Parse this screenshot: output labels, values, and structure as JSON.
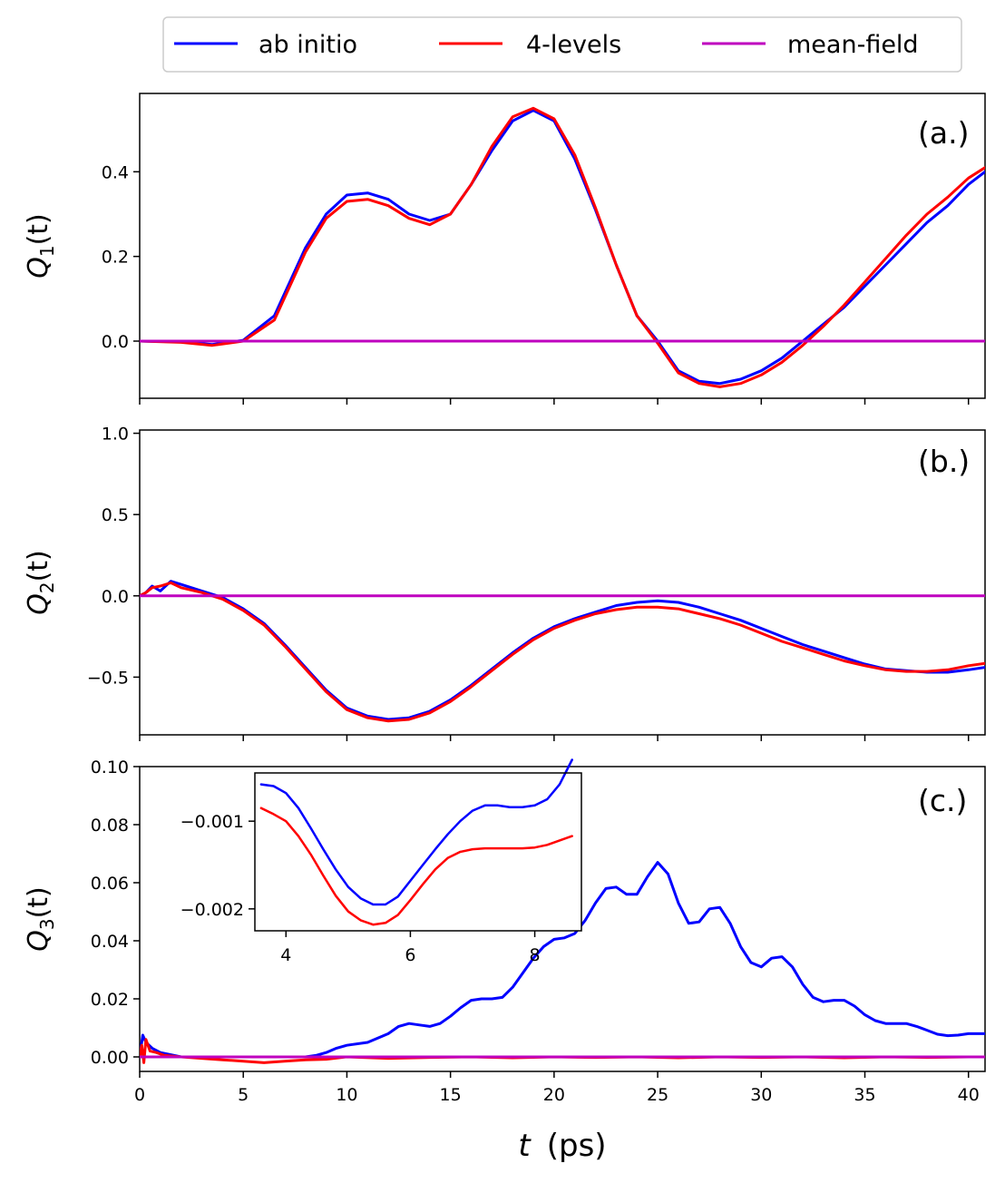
{
  "legend": {
    "entries": [
      {
        "label": "ab initio",
        "color": "#0000ff"
      },
      {
        "label": "4-levels",
        "color": "#ff0000"
      },
      {
        "label": "mean-field",
        "color": "#bf00bf"
      }
    ]
  },
  "xaxis": {
    "label_t": "t",
    "label_units": "(ps)",
    "range": [
      0,
      40.8
    ],
    "ticks": [
      0,
      5,
      10,
      15,
      20,
      25,
      30,
      35,
      40
    ],
    "tick_labels": [
      "0",
      "5",
      "10",
      "15",
      "20",
      "25",
      "30",
      "35",
      "40"
    ]
  },
  "chart_data": [
    {
      "type": "line",
      "panel_label": "(a.)",
      "ylabel_main": "Q",
      "ylabel_sub": "1",
      "ylabel_arg": "(t)",
      "ylim": [
        -0.135,
        0.585
      ],
      "yticks": [
        0.0,
        0.2,
        0.4
      ],
      "ytick_labels": [
        "0.0",
        "0.2",
        "0.4"
      ],
      "series": [
        {
          "name": "ab initio",
          "color": "#0000ff",
          "x": [
            0,
            2,
            3.5,
            5,
            6.5,
            8,
            9,
            10,
            11,
            12,
            13,
            14,
            15,
            16,
            17,
            18,
            19,
            20,
            21,
            22,
            23,
            24,
            25,
            26,
            27,
            28,
            29,
            30,
            31,
            32,
            33,
            34,
            35,
            36,
            37,
            38,
            39,
            40,
            40.8
          ],
          "y": [
            0,
            -0.002,
            -0.008,
            0.002,
            0.06,
            0.22,
            0.3,
            0.345,
            0.35,
            0.335,
            0.3,
            0.285,
            0.3,
            0.37,
            0.45,
            0.52,
            0.545,
            0.52,
            0.43,
            0.31,
            0.18,
            0.06,
            0.0,
            -0.07,
            -0.095,
            -0.1,
            -0.09,
            -0.07,
            -0.04,
            0.0,
            0.04,
            0.08,
            0.13,
            0.18,
            0.23,
            0.28,
            0.32,
            0.37,
            0.4
          ]
        },
        {
          "name": "4-levels",
          "color": "#ff0000",
          "x": [
            0,
            2,
            3.5,
            5,
            6.5,
            8,
            9,
            10,
            11,
            12,
            13,
            14,
            15,
            16,
            17,
            18,
            19,
            20,
            21,
            22,
            23,
            24,
            25,
            26,
            27,
            28,
            29,
            30,
            31,
            32,
            33,
            34,
            35,
            36,
            37,
            38,
            39,
            40,
            40.8
          ],
          "y": [
            0,
            -0.003,
            -0.01,
            0.0,
            0.05,
            0.21,
            0.29,
            0.33,
            0.335,
            0.32,
            0.29,
            0.275,
            0.3,
            0.37,
            0.46,
            0.53,
            0.55,
            0.525,
            0.44,
            0.315,
            0.18,
            0.06,
            -0.005,
            -0.075,
            -0.1,
            -0.108,
            -0.1,
            -0.08,
            -0.05,
            -0.01,
            0.035,
            0.085,
            0.14,
            0.195,
            0.25,
            0.3,
            0.34,
            0.385,
            0.41
          ]
        },
        {
          "name": "mean-field",
          "color": "#bf00bf",
          "x": [
            0,
            40.8
          ],
          "y": [
            0,
            0
          ]
        }
      ]
    },
    {
      "type": "line",
      "panel_label": "(b.)",
      "ylabel_main": "Q",
      "ylabel_sub": "2",
      "ylabel_arg": "(t)",
      "ylim": [
        -0.855,
        1.02
      ],
      "yticks": [
        -0.5,
        0.0,
        0.5,
        1.0
      ],
      "ytick_labels": [
        "−0.5",
        "0.0",
        "0.5",
        "1.0"
      ],
      "series": [
        {
          "name": "ab initio",
          "color": "#0000ff",
          "x": [
            0,
            0.3,
            0.6,
            1.0,
            1.5,
            2,
            3,
            4,
            5,
            6,
            7,
            8,
            9,
            10,
            11,
            12,
            13,
            14,
            15,
            16,
            17,
            18,
            19,
            20,
            21,
            22,
            23,
            24,
            25,
            26,
            27,
            28,
            29,
            30,
            31,
            32,
            33,
            34,
            35,
            36,
            37,
            38,
            39,
            40,
            40.8
          ],
          "y": [
            0,
            0.02,
            0.06,
            0.03,
            0.09,
            0.07,
            0.03,
            -0.01,
            -0.08,
            -0.17,
            -0.3,
            -0.44,
            -0.58,
            -0.69,
            -0.74,
            -0.76,
            -0.75,
            -0.71,
            -0.64,
            -0.55,
            -0.45,
            -0.35,
            -0.26,
            -0.19,
            -0.14,
            -0.1,
            -0.06,
            -0.04,
            -0.03,
            -0.04,
            -0.07,
            -0.11,
            -0.15,
            -0.2,
            -0.25,
            -0.3,
            -0.34,
            -0.38,
            -0.42,
            -0.45,
            -0.46,
            -0.47,
            -0.47,
            -0.455,
            -0.44
          ]
        },
        {
          "name": "4-levels",
          "color": "#ff0000",
          "x": [
            0,
            0.3,
            0.6,
            1.0,
            1.5,
            2,
            3,
            4,
            5,
            6,
            7,
            8,
            9,
            10,
            11,
            12,
            13,
            14,
            15,
            16,
            17,
            18,
            19,
            20,
            21,
            22,
            23,
            24,
            25,
            26,
            27,
            28,
            29,
            30,
            31,
            32,
            33,
            34,
            35,
            36,
            37,
            38,
            39,
            40,
            40.8
          ],
          "y": [
            0,
            0.02,
            0.05,
            0.06,
            0.08,
            0.05,
            0.02,
            -0.02,
            -0.09,
            -0.18,
            -0.31,
            -0.45,
            -0.59,
            -0.7,
            -0.75,
            -0.77,
            -0.76,
            -0.72,
            -0.65,
            -0.56,
            -0.46,
            -0.36,
            -0.27,
            -0.2,
            -0.15,
            -0.11,
            -0.085,
            -0.07,
            -0.07,
            -0.08,
            -0.11,
            -0.14,
            -0.18,
            -0.23,
            -0.28,
            -0.32,
            -0.36,
            -0.4,
            -0.43,
            -0.455,
            -0.465,
            -0.465,
            -0.455,
            -0.43,
            -0.415
          ]
        },
        {
          "name": "mean-field",
          "color": "#bf00bf",
          "x": [
            0,
            40.8
          ],
          "y": [
            0,
            0
          ]
        }
      ]
    },
    {
      "type": "line",
      "panel_label": "(c.)",
      "ylabel_main": "Q",
      "ylabel_sub": "3",
      "ylabel_arg": "(t)",
      "ylim": [
        -0.005,
        0.1
      ],
      "yticks": [
        0.0,
        0.02,
        0.04,
        0.06,
        0.08,
        0.1
      ],
      "ytick_labels": [
        "0.00",
        "0.02",
        "0.04",
        "0.06",
        "0.08",
        "0.10"
      ],
      "series": [
        {
          "name": "ab initio",
          "color": "#0000ff",
          "x": [
            0,
            0.15,
            0.3,
            0.6,
            1,
            2,
            4,
            6,
            8,
            8.5,
            9,
            9.5,
            10,
            11,
            12,
            12.5,
            13,
            13.5,
            14,
            14.5,
            15,
            15.5,
            16,
            16.5,
            17,
            17.5,
            18,
            18.5,
            19,
            19.5,
            20,
            20.5,
            21,
            21.5,
            22,
            22.5,
            23,
            23.5,
            24,
            24.5,
            25,
            25.5,
            26,
            26.5,
            27,
            27.5,
            28,
            28.5,
            29,
            29.5,
            30,
            30.5,
            31,
            31.5,
            32,
            32.5,
            33,
            33.5,
            34,
            34.5,
            35,
            35.5,
            36,
            36.5,
            37,
            37.5,
            38,
            38.5,
            39,
            39.5,
            40,
            40.8
          ],
          "y": [
            0.0,
            0.0075,
            0.005,
            0.003,
            0.0015,
            0.0,
            0.0,
            0.0,
            0.0,
            0.0005,
            0.0015,
            0.003,
            0.004,
            0.005,
            0.008,
            0.0105,
            0.0115,
            0.011,
            0.0105,
            0.0115,
            0.014,
            0.017,
            0.0195,
            0.02,
            0.02,
            0.0205,
            0.024,
            0.029,
            0.034,
            0.038,
            0.0405,
            0.041,
            0.0425,
            0.047,
            0.053,
            0.058,
            0.0585,
            0.056,
            0.056,
            0.062,
            0.067,
            0.063,
            0.053,
            0.046,
            0.0465,
            0.051,
            0.0515,
            0.046,
            0.038,
            0.0325,
            0.031,
            0.034,
            0.0345,
            0.031,
            0.025,
            0.0205,
            0.019,
            0.0195,
            0.0195,
            0.0175,
            0.0145,
            0.0125,
            0.0115,
            0.0115,
            0.0115,
            0.0105,
            0.0092,
            0.0078,
            0.0073,
            0.0075,
            0.008,
            0.008
          ]
        },
        {
          "name": "4-levels",
          "color": "#ff0000",
          "x": [
            0,
            0.1,
            0.2,
            0.3,
            0.5,
            0.8,
            1.2,
            2,
            3,
            4,
            5,
            6,
            7,
            8,
            9,
            10,
            12,
            14,
            16,
            18,
            20,
            22,
            24,
            26,
            28,
            30,
            32,
            34,
            36,
            38,
            40,
            40.8
          ],
          "y": [
            0.0,
            0.004,
            -0.002,
            0.006,
            0.002,
            0.0015,
            0.0005,
            0.0,
            -0.0005,
            -0.001,
            -0.0015,
            -0.002,
            -0.0015,
            -0.001,
            -0.0008,
            0.0,
            -0.0005,
            -0.0002,
            0.0,
            -0.0003,
            0.0,
            -0.0002,
            0.0,
            -0.0003,
            0.0,
            -0.0002,
            0.0,
            -0.0003,
            0.0,
            -0.0002,
            0.0,
            0.0
          ]
        },
        {
          "name": "mean-field",
          "color": "#bf00bf",
          "x": [
            0,
            40.8
          ],
          "y": [
            0,
            0
          ]
        }
      ]
    },
    {
      "type": "line",
      "panel_label": "inset",
      "xlim": [
        3.5,
        8.75
      ],
      "ylim": [
        -0.00225,
        -0.00045
      ],
      "xticks": [
        4,
        6,
        8
      ],
      "xtick_labels": [
        "4",
        "6",
        "8"
      ],
      "yticks": [
        -0.001,
        -0.002
      ],
      "ytick_labels": [
        "−0.001",
        "−0.002"
      ],
      "series": [
        {
          "name": "ab initio",
          "color": "#0000ff",
          "x": [
            3.6,
            3.8,
            4.0,
            4.2,
            4.4,
            4.6,
            4.8,
            5.0,
            5.2,
            5.4,
            5.6,
            5.8,
            6.0,
            6.2,
            6.4,
            6.6,
            6.8,
            7.0,
            7.2,
            7.4,
            7.6,
            7.8,
            8.0,
            8.2,
            8.4,
            8.6
          ],
          "y": [
            -0.00058,
            -0.0006,
            -0.00068,
            -0.00085,
            -0.00108,
            -0.00132,
            -0.00155,
            -0.00175,
            -0.00188,
            -0.00195,
            -0.00195,
            -0.00186,
            -0.00168,
            -0.0015,
            -0.00132,
            -0.00115,
            -0.001,
            -0.00088,
            -0.00082,
            -0.00082,
            -0.00084,
            -0.00084,
            -0.00082,
            -0.00075,
            -0.00058,
            -0.0003
          ]
        },
        {
          "name": "4-levels",
          "color": "#ff0000",
          "x": [
            3.6,
            3.8,
            4.0,
            4.2,
            4.4,
            4.6,
            4.8,
            5.0,
            5.2,
            5.4,
            5.6,
            5.8,
            6.0,
            6.2,
            6.4,
            6.6,
            6.8,
            7.0,
            7.2,
            7.4,
            7.6,
            7.8,
            8.0,
            8.2,
            8.4,
            8.6
          ],
          "y": [
            -0.00085,
            -0.00092,
            -0.001,
            -0.00117,
            -0.00138,
            -0.00162,
            -0.00185,
            -0.00203,
            -0.00213,
            -0.00218,
            -0.00216,
            -0.00207,
            -0.0019,
            -0.00172,
            -0.00155,
            -0.00142,
            -0.00135,
            -0.00132,
            -0.00131,
            -0.00131,
            -0.00131,
            -0.00131,
            -0.0013,
            -0.00127,
            -0.00122,
            -0.00117
          ]
        }
      ]
    }
  ]
}
